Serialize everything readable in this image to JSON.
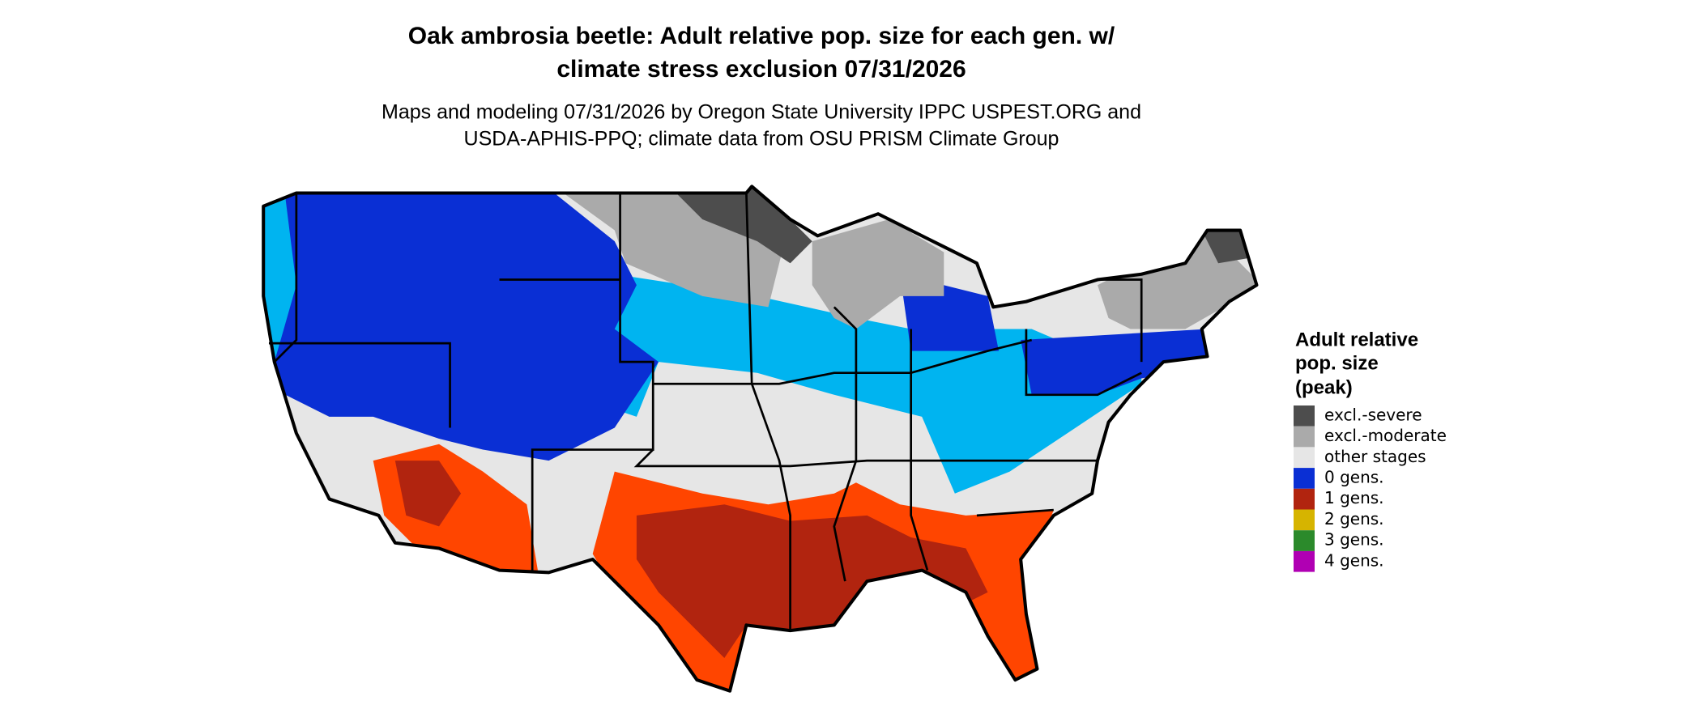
{
  "title": [
    "Oak ambrosia beetle: Adult relative pop. size for each gen. w/",
    "climate stress exclusion 07/31/2026"
  ],
  "subtitle": [
    "Maps and modeling 07/31/2026 by Oregon State University IPPC USPEST.ORG and",
    "USDA-APHIS-PPQ; climate data from OSU PRISM Climate Group"
  ],
  "legend": {
    "title": [
      "Adult relative",
      "pop. size",
      "(peak)"
    ],
    "items": [
      {
        "label": "excl.-severe",
        "color": "#4d4d4d"
      },
      {
        "label": "excl.-moderate",
        "color": "#aaaaaa"
      },
      {
        "label": "other stages",
        "color": "#e6e6e6"
      },
      {
        "label": "0 gens.",
        "color": "#0a2fd4"
      },
      {
        "label": "1 gens.",
        "color": "#b1240f"
      },
      {
        "label": "2 gens.",
        "color": "#d6b400"
      },
      {
        "label": "3 gens.",
        "color": "#2b8a2b"
      },
      {
        "label": "4 gens.",
        "color": "#b000b3"
      }
    ]
  }
}
